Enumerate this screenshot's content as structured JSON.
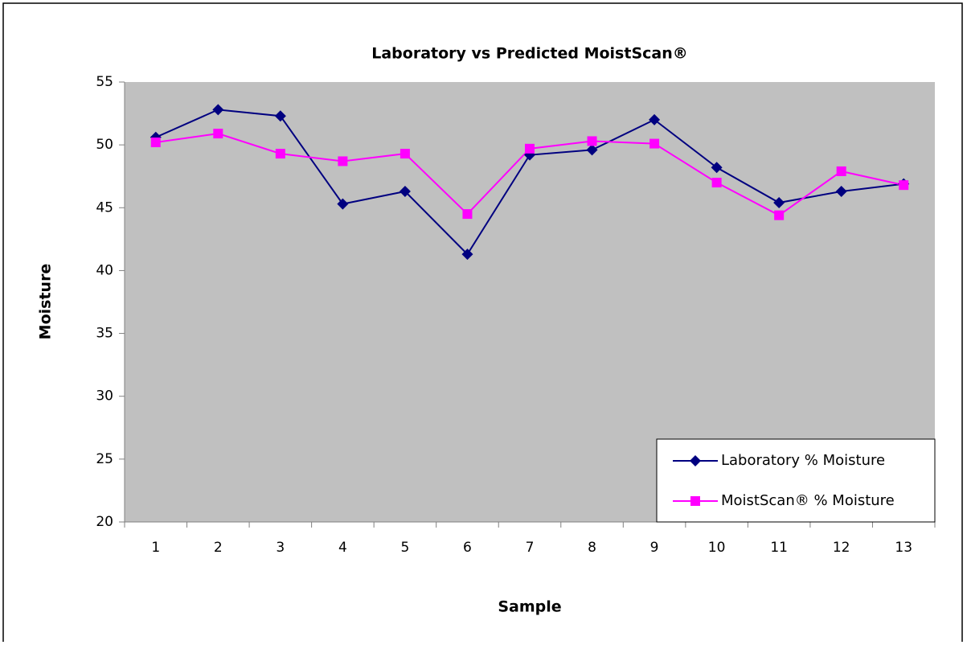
{
  "chart_data": {
    "type": "line",
    "title": "Laboratory vs Predicted MoistScan®",
    "x_label": "Sample",
    "y_label": "Moisture",
    "categories": [
      "1",
      "2",
      "3",
      "4",
      "5",
      "6",
      "7",
      "8",
      "9",
      "10",
      "11",
      "12",
      "13"
    ],
    "series": [
      {
        "name": "Laboratory % Moisture",
        "color": "#000080",
        "marker": "diamond",
        "values": [
          50.6,
          52.8,
          52.3,
          45.3,
          46.3,
          41.3,
          49.2,
          49.6,
          52.0,
          48.2,
          45.4,
          46.3,
          46.9
        ]
      },
      {
        "name": "MoistScan® % Moisture",
        "color": "#ff00ff",
        "marker": "square",
        "values": [
          50.2,
          50.9,
          49.3,
          48.7,
          49.3,
          44.5,
          49.7,
          50.3,
          50.1,
          47.0,
          44.4,
          47.9,
          46.8
        ]
      }
    ],
    "ylim": [
      20,
      55
    ],
    "yticks": [
      20,
      25,
      30,
      35,
      40,
      45,
      50,
      55
    ],
    "plot_background": "#c0c0c0",
    "legend": "lower right"
  }
}
